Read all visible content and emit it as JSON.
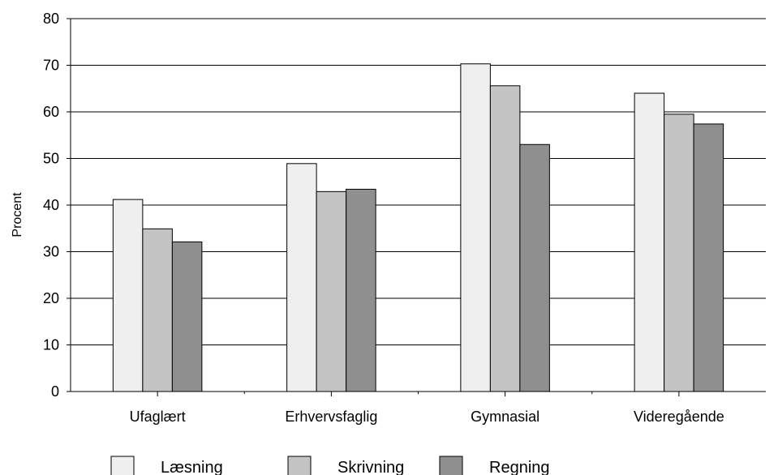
{
  "chart_data": {
    "type": "bar",
    "title": "",
    "xlabel": "",
    "ylabel": "Procent",
    "ylim": [
      0,
      80
    ],
    "yticks": [
      0,
      10,
      20,
      30,
      40,
      50,
      60,
      70,
      80
    ],
    "grid": "horizontal",
    "legend_position": "bottom",
    "categories": [
      "Ufaglært",
      "Erhvervsfaglig",
      "Gymnasial",
      "Videregående"
    ],
    "series": [
      {
        "name": "Læsning",
        "color": "#efefef",
        "values": [
          41.2,
          48.9,
          70.3,
          64.0
        ]
      },
      {
        "name": "Skrivning",
        "color": "#c4c4c4",
        "values": [
          34.9,
          42.9,
          65.6,
          59.5
        ]
      },
      {
        "name": "Regning",
        "color": "#8f8f8f",
        "values": [
          32.1,
          43.4,
          53.0,
          57.4
        ]
      }
    ]
  }
}
